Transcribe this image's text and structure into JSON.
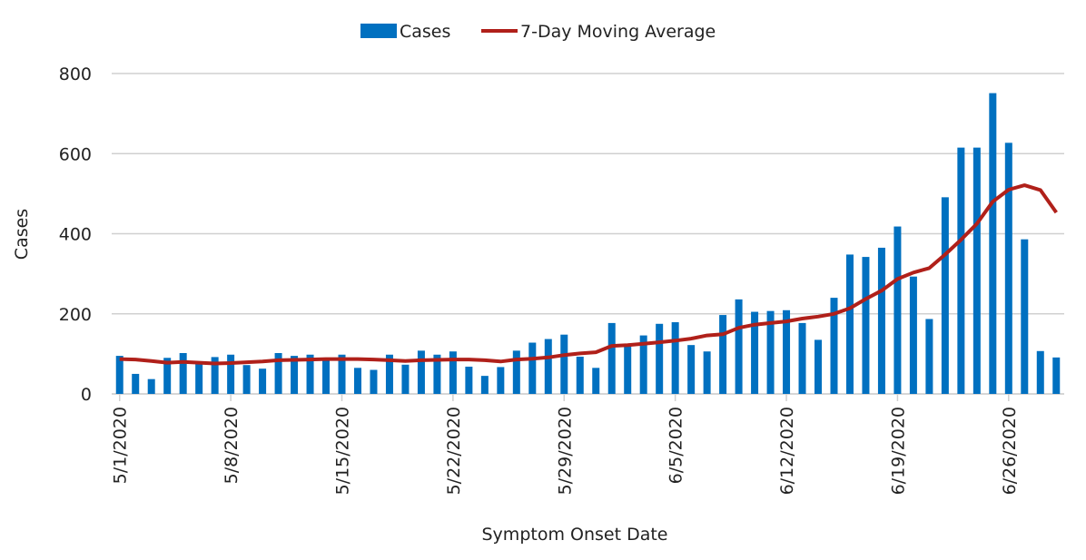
{
  "chart_data": {
    "type": "bar",
    "y_label": "Cases",
    "x_label": "Symptom Onset Date",
    "categories": [
      "5/1/2020",
      null,
      null,
      null,
      null,
      null,
      null,
      "5/8/2020",
      null,
      null,
      null,
      null,
      null,
      null,
      "5/15/2020",
      null,
      null,
      null,
      null,
      null,
      null,
      "5/22/2020",
      null,
      null,
      null,
      null,
      null,
      null,
      "5/29/2020",
      null,
      null,
      null,
      null,
      null,
      null,
      "6/5/2020",
      null,
      null,
      null,
      null,
      null,
      null,
      "6/12/2020",
      null,
      null,
      null,
      null,
      null,
      null,
      "6/19/2020",
      null,
      null,
      null,
      null,
      null,
      null,
      "6/26/2020",
      null,
      null,
      null
    ],
    "series": [
      {
        "name": "Cases",
        "color": "#0070c0",
        "type": "bar",
        "values": [
          95,
          50,
          37,
          90,
          102,
          80,
          92,
          98,
          72,
          63,
          102,
          95,
          98,
          85,
          98,
          65,
          60,
          98,
          73,
          108,
          98,
          106,
          68,
          45,
          67,
          108,
          128,
          137,
          148,
          93,
          65,
          177,
          120,
          146,
          175,
          179,
          122,
          106,
          197,
          236,
          205,
          207,
          209,
          177,
          135,
          240,
          348,
          342,
          365,
          418,
          293,
          187,
          491,
          615,
          615,
          751,
          627,
          386,
          107,
          91
        ]
      },
      {
        "name": "7-Day Moving Average",
        "color": "#b0201a",
        "type": "line",
        "values": [
          87,
          86,
          82,
          78,
          80,
          78,
          76,
          77,
          79,
          81,
          84,
          85,
          86,
          87,
          87,
          87,
          86,
          84,
          82,
          84,
          85,
          86,
          86,
          84,
          81,
          86,
          88,
          91,
          97,
          101,
          104,
          120,
          122,
          125,
          129,
          133,
          138,
          146,
          149,
          165,
          173,
          177,
          181,
          188,
          193,
          200,
          214,
          237,
          258,
          287,
          303,
          314,
          348,
          385,
          425,
          480,
          510,
          521,
          509,
          453
        ]
      }
    ],
    "ylim": [
      0,
      800
    ],
    "yticks": [
      0,
      200,
      400,
      600,
      800
    ],
    "grid": true,
    "legend": "top"
  }
}
